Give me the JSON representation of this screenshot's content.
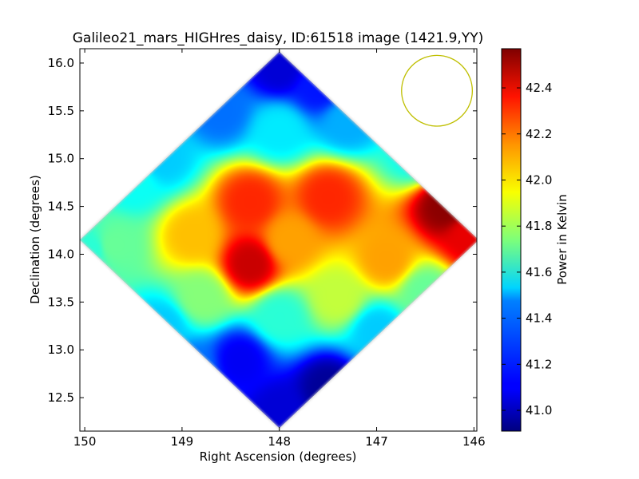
{
  "chart_data": {
    "type": "heatmap",
    "title": "Galileo21_mars_HIGHres_daisy, ID:61518 image (1421.9,YY)",
    "xlabel": "Right Ascension (degrees)",
    "ylabel": "Declination (degrees)",
    "colorbar_label": "Power in Kelvin",
    "xlim": [
      150.05,
      145.97
    ],
    "ylim": [
      12.15,
      16.15
    ],
    "x_ticks": [
      150,
      149,
      148,
      147,
      146
    ],
    "x_tick_labels": [
      "150",
      "149",
      "148",
      "147",
      "146"
    ],
    "y_ticks": [
      12.5,
      13.0,
      13.5,
      14.0,
      14.5,
      15.0,
      15.5,
      16.0
    ],
    "y_tick_labels": [
      "12.5",
      "13.0",
      "13.5",
      "14.0",
      "14.5",
      "15.0",
      "15.5",
      "16.0"
    ],
    "colorbar_range": [
      40.91,
      42.57
    ],
    "colorbar_ticks": [
      41.0,
      41.2,
      41.4,
      41.6,
      41.8,
      42.0,
      42.2,
      42.4
    ],
    "colorbar_tick_labels": [
      "41.0",
      "41.2",
      "41.4",
      "41.6",
      "41.8",
      "42.0",
      "42.2",
      "42.4"
    ],
    "colormap": "jet",
    "coverage": {
      "shape": "diamond",
      "center": [
        148.0,
        14.15
      ],
      "half_width_ra": 2.05,
      "half_height_dec": 1.97
    },
    "beam": {
      "center": [
        146.38,
        15.71
      ],
      "radius_dec": 0.37,
      "color": "#bfbf00"
    },
    "features": [
      {
        "ra": 148.0,
        "dec": 15.95,
        "value": 41.05
      },
      {
        "ra": 147.6,
        "dec": 15.75,
        "value": 41.15
      },
      {
        "ra": 148.6,
        "dec": 15.5,
        "value": 41.3
      },
      {
        "ra": 147.3,
        "dec": 15.4,
        "value": 41.4
      },
      {
        "ra": 148.0,
        "dec": 15.3,
        "value": 41.5
      },
      {
        "ra": 149.2,
        "dec": 15.0,
        "value": 41.45
      },
      {
        "ra": 146.6,
        "dec": 15.05,
        "value": 41.55
      },
      {
        "ra": 148.3,
        "dec": 14.55,
        "value": 42.3
      },
      {
        "ra": 147.5,
        "dec": 14.6,
        "value": 42.3
      },
      {
        "ra": 146.3,
        "dec": 14.5,
        "value": 42.55
      },
      {
        "ra": 146.05,
        "dec": 14.2,
        "value": 42.4
      },
      {
        "ra": 148.3,
        "dec": 13.9,
        "value": 42.45
      },
      {
        "ra": 147.9,
        "dec": 14.15,
        "value": 42.1
      },
      {
        "ra": 146.9,
        "dec": 13.95,
        "value": 42.1
      },
      {
        "ra": 148.9,
        "dec": 14.2,
        "value": 42.05
      },
      {
        "ra": 149.7,
        "dec": 14.1,
        "value": 41.7
      },
      {
        "ra": 149.95,
        "dec": 14.05,
        "value": 41.6
      },
      {
        "ra": 149.5,
        "dec": 14.75,
        "value": 41.55
      },
      {
        "ra": 148.8,
        "dec": 13.55,
        "value": 41.75
      },
      {
        "ra": 147.4,
        "dec": 13.55,
        "value": 41.85
      },
      {
        "ra": 146.5,
        "dec": 13.6,
        "value": 41.7
      },
      {
        "ra": 148.0,
        "dec": 13.35,
        "value": 41.6
      },
      {
        "ra": 149.2,
        "dec": 13.25,
        "value": 41.45
      },
      {
        "ra": 147.0,
        "dec": 13.2,
        "value": 41.45
      },
      {
        "ra": 148.4,
        "dec": 12.9,
        "value": 41.1
      },
      {
        "ra": 147.5,
        "dec": 12.6,
        "value": 40.95
      },
      {
        "ra": 148.0,
        "dec": 12.35,
        "value": 41.05
      },
      {
        "ra": 148.9,
        "dec": 12.8,
        "value": 41.3
      }
    ]
  }
}
